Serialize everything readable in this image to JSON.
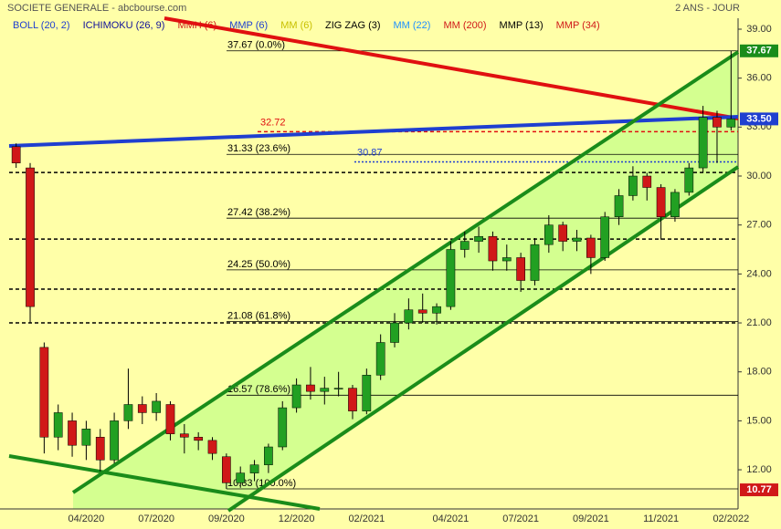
{
  "chart_data": {
    "type": "candlestick",
    "title": "SOCIETE GENERALE - abcbourse.com",
    "subtitle": "2 ANS - JOUR",
    "background": "#ffffa8",
    "up_color": "#22a022",
    "down_color": "#d01818",
    "legend": [
      {
        "name": "BOLL (20, 2)",
        "color": "#1f3fd0"
      },
      {
        "name": "ICHIMOKU (26, 9)",
        "color": "#10109a"
      },
      {
        "name": "MMH (6)",
        "color": "#d01818"
      },
      {
        "name": "MMP (6)",
        "color": "#1f3fd0"
      },
      {
        "name": "MM (6)",
        "color": "#c8c000"
      },
      {
        "name": "ZIG ZAG (3)",
        "color": "#000000"
      },
      {
        "name": "MM (22)",
        "color": "#1e90ff"
      },
      {
        "name": "MM (200)",
        "color": "#d01818"
      },
      {
        "name": "MMP (13)",
        "color": "#000000"
      },
      {
        "name": "MMP (34)",
        "color": "#d01818"
      }
    ],
    "categories": [
      null,
      null,
      null,
      null,
      null,
      "04/2020",
      null,
      null,
      null,
      null,
      "07/2020",
      null,
      null,
      null,
      null,
      "09/2020",
      null,
      null,
      null,
      null,
      "12/2020",
      null,
      null,
      null,
      null,
      "02/2021",
      null,
      null,
      null,
      null,
      null,
      "04/2021",
      null,
      null,
      null,
      null,
      "07/2021",
      null,
      null,
      null,
      null,
      "09/2021",
      null,
      null,
      null,
      null,
      "11/2021",
      null,
      null,
      null,
      null,
      "02/2022"
    ],
    "series": {
      "open": [
        31.8,
        30.5,
        19.5,
        14,
        15,
        13.5,
        14,
        12.6,
        15,
        16,
        15.5,
        16,
        14.2,
        14,
        13.8,
        12.8,
        11.2,
        11.8,
        12.3,
        13.4,
        15.8,
        17.2,
        16.8,
        17,
        17,
        15.6,
        17.8,
        19.8,
        21,
        21.8,
        21.6,
        22,
        25.5,
        26,
        26.3,
        24.8,
        25,
        23.6,
        25.8,
        27,
        26,
        26.2,
        25,
        27.5,
        28.8,
        30,
        29.3,
        27.5,
        29,
        30.5,
        33.6,
        33
      ],
      "high": [
        32,
        30.8,
        19.8,
        16,
        15.5,
        15,
        14.5,
        15.5,
        18.2,
        16.5,
        16.7,
        16.2,
        14.8,
        14.3,
        14,
        13,
        12.2,
        12.6,
        13.6,
        16.2,
        17.6,
        18.3,
        17.7,
        18,
        17.2,
        18.2,
        20.3,
        21.6,
        22.5,
        22.8,
        22.2,
        26,
        26.6,
        26.9,
        26.6,
        25.8,
        25.3,
        26.2,
        27.6,
        27.2,
        26.7,
        26.4,
        27.8,
        29.2,
        30.6,
        30.2,
        29.5,
        29.2,
        30.8,
        34.3,
        34,
        37.67
      ],
      "low": [
        30.5,
        21,
        13,
        13.2,
        12.8,
        12.6,
        11.9,
        12.4,
        14.5,
        14.8,
        15,
        13.8,
        13,
        13.2,
        12.6,
        10.83,
        10.9,
        11.3,
        11.8,
        13.2,
        15.5,
        16.3,
        16,
        16.5,
        15.1,
        15.4,
        17.5,
        19.5,
        20.6,
        21,
        20.9,
        21.8,
        25,
        25.3,
        24.2,
        24.2,
        22.9,
        23.3,
        25.3,
        25.4,
        25.4,
        24,
        24.8,
        27,
        28.5,
        28.5,
        26.1,
        27.2,
        28.8,
        30.2,
        30.8,
        32.8
      ],
      "close": [
        30.8,
        22,
        14,
        15.5,
        13.5,
        14.5,
        12.6,
        15,
        16,
        15.5,
        16.2,
        14.2,
        14,
        13.8,
        13,
        11.2,
        11.8,
        12.3,
        13.4,
        15.8,
        17.2,
        16.8,
        17,
        17,
        15.6,
        17.8,
        19.8,
        21,
        21.8,
        21.6,
        22,
        25.5,
        26,
        26.3,
        24.8,
        25,
        23.6,
        25.8,
        27,
        26,
        26.2,
        25,
        27.5,
        28.8,
        30,
        29.3,
        27.5,
        29,
        30.5,
        33.6,
        33,
        33.5
      ]
    },
    "fib_levels": [
      {
        "value": 37.67,
        "label": "37.67  (0.0%)"
      },
      {
        "value": 31.33,
        "label": "31.33  (23.6%)"
      },
      {
        "value": 27.42,
        "label": "27.42  (38.2%)"
      },
      {
        "value": 24.25,
        "label": "24.25  (50.0%)"
      },
      {
        "value": 21.08,
        "label": "21.08  (61.8%)"
      },
      {
        "value": 16.57,
        "label": "16.57  (78.6%)"
      },
      {
        "value": 10.83,
        "label": "10.83  (100.0%)"
      }
    ],
    "support_levels": [
      30.22,
      26.14,
      23.07,
      21.0
    ],
    "marked_levels": [
      {
        "value": 32.72,
        "color": "#e01010"
      },
      {
        "value": 30.87,
        "color": "#1f3fd0"
      }
    ],
    "price_tags": [
      {
        "value": 37.67,
        "color": "#1a8c1a"
      },
      {
        "value": 33.5,
        "label": "33.50",
        "color": "#1f3fd0"
      },
      {
        "value": 10.77,
        "color": "#d01818"
      }
    ],
    "ylim": [
      9.6,
      39.67
    ],
    "yticks": [
      {
        "value": 39,
        "label": "39.00"
      },
      {
        "value": 36,
        "label": "36.00"
      },
      {
        "value": 33,
        "label": "33.00"
      },
      {
        "value": 30,
        "label": "30.00"
      },
      {
        "value": 27,
        "label": "27.00"
      },
      {
        "value": 24,
        "label": "24.00"
      },
      {
        "value": 21,
        "label": "21.00"
      },
      {
        "value": 18,
        "label": "18.00"
      },
      {
        "value": 15,
        "label": "15.00"
      },
      {
        "value": 12,
        "label": "12.00"
      }
    ]
  }
}
